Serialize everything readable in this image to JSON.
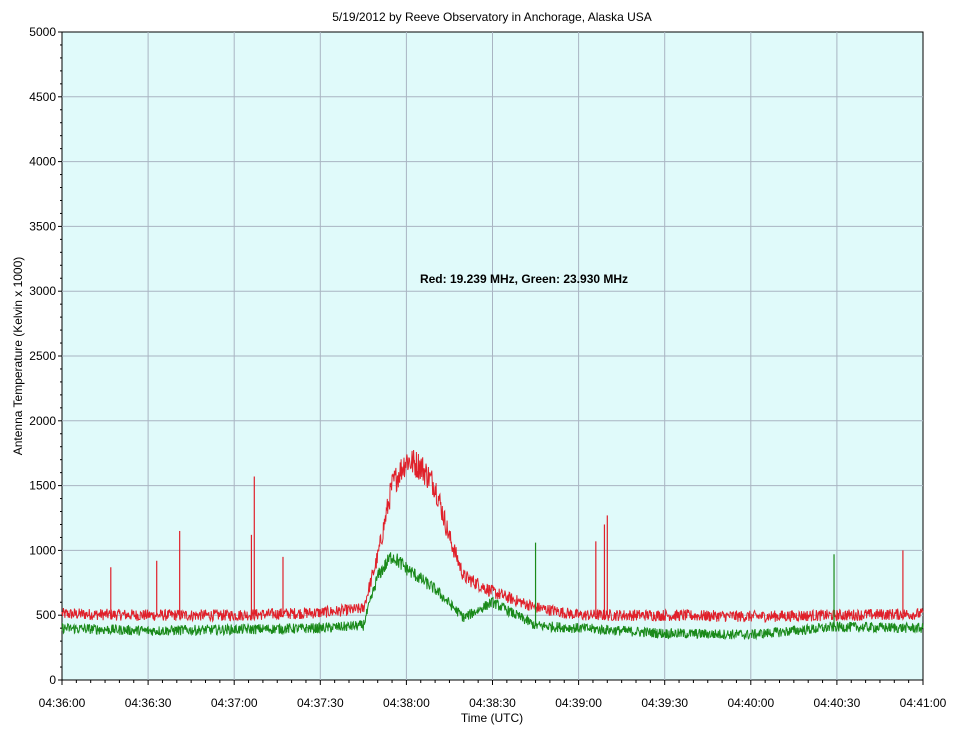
{
  "chart_data": {
    "type": "line",
    "title": "5/19/2012  by  Reeve Observatory  in  Anchorage, Alaska  USA",
    "xlabel": "Time (UTC)",
    "ylabel": "Antenna Temperature (Kelvin x 1000)",
    "annotation": "Red: 19.239 MHz, Green: 23.930 MHz",
    "xlim": [
      "04:36:00",
      "04:41:00"
    ],
    "ylim": [
      0,
      5000
    ],
    "x_ticks": [
      "04:36:00",
      "04:36:30",
      "04:37:00",
      "04:37:30",
      "04:38:00",
      "04:38:30",
      "04:39:00",
      "04:39:30",
      "04:40:00",
      "04:40:30",
      "04:41:00"
    ],
    "y_ticks": [
      0,
      500,
      1000,
      1500,
      2000,
      2500,
      3000,
      3500,
      4000,
      4500,
      5000
    ],
    "grid": true,
    "background": "#e0fafa",
    "series": [
      {
        "color": "#e0202a",
        "x": [
          "04:36:00",
          "04:36:30",
          "04:37:00",
          "04:37:30",
          "04:37:45",
          "04:37:50",
          "04:37:55",
          "04:38:00",
          "04:38:05",
          "04:38:10",
          "04:38:15",
          "04:38:20",
          "04:38:30",
          "04:38:45",
          "04:39:00",
          "04:39:30",
          "04:40:00",
          "04:40:30",
          "04:41:00"
        ],
        "values": [
          510,
          500,
          500,
          520,
          550,
          950,
          1500,
          1700,
          1650,
          1500,
          1100,
          800,
          680,
          560,
          500,
          500,
          490,
          500,
          510
        ]
      },
      {
        "color": "#1a8a1a",
        "x": [
          "04:36:00",
          "04:36:30",
          "04:37:00",
          "04:37:30",
          "04:37:45",
          "04:37:50",
          "04:37:55",
          "04:38:00",
          "04:38:10",
          "04:38:20",
          "04:38:30",
          "04:38:45",
          "04:39:00",
          "04:39:30",
          "04:40:00",
          "04:40:30",
          "04:41:00"
        ],
        "values": [
          400,
          380,
          390,
          400,
          420,
          800,
          960,
          860,
          700,
          480,
          600,
          420,
          400,
          360,
          350,
          410,
          400
        ]
      }
    ],
    "spikes": [
      {
        "series": 0,
        "x": "04:37:07",
        "value": 1570
      },
      {
        "series": 0,
        "x": "04:37:06",
        "value": 1120
      },
      {
        "series": 0,
        "x": "04:36:41",
        "value": 1150
      },
      {
        "series": 0,
        "x": "04:36:33",
        "value": 920
      },
      {
        "series": 0,
        "x": "04:39:10",
        "value": 1270
      },
      {
        "series": 0,
        "x": "04:39:09",
        "value": 1200
      },
      {
        "series": 0,
        "x": "04:39:06",
        "value": 1070
      },
      {
        "series": 0,
        "x": "04:40:53",
        "value": 1000
      },
      {
        "series": 0,
        "x": "04:36:17",
        "value": 870
      },
      {
        "series": 0,
        "x": "04:37:17",
        "value": 950
      },
      {
        "series": 1,
        "x": "04:38:45",
        "value": 1060
      },
      {
        "series": 1,
        "x": "04:40:29",
        "value": 970
      }
    ]
  }
}
